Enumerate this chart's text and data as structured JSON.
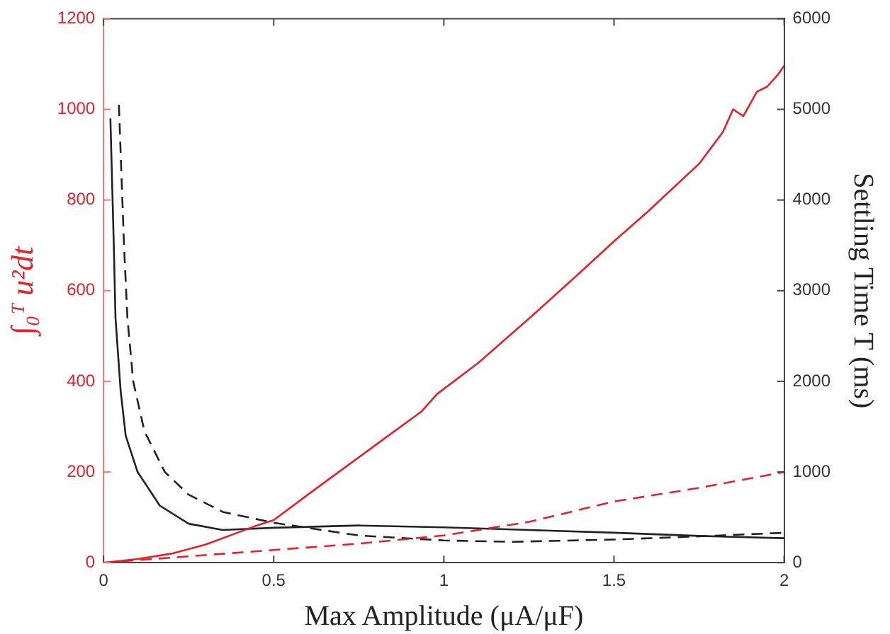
{
  "chart_data": {
    "type": "line",
    "xlabel": "Max Amplitude (μA/μF)",
    "ylabel": "∫₀ᵀ u²dt",
    "y2label": "Settling Time T (ms)",
    "xlim": [
      0,
      2
    ],
    "xticks": [
      0,
      0.5,
      1,
      1.5,
      2
    ],
    "ylim": [
      0,
      1200
    ],
    "yticks": [
      0,
      200,
      400,
      600,
      800,
      1000,
      1200
    ],
    "y2lim": [
      0,
      6000
    ],
    "y2ticks": [
      0,
      1000,
      2000,
      3000,
      4000,
      5000,
      6000
    ],
    "grid": false,
    "legend": false,
    "marker": "none",
    "series": [
      {
        "color": "#e8202a",
        "line_style": "solid",
        "x": [
          0,
          0.1,
          0.2,
          0.3,
          0.4,
          0.45,
          0.5,
          0.6,
          0.7,
          0.8,
          0.935,
          0.98,
          1.1,
          1.26,
          1.4,
          1.5,
          1.6,
          1.75,
          1.82,
          1.85,
          1.88,
          1.92,
          1.95,
          1.98,
          2
        ],
        "values": [
          0,
          8,
          20,
          40,
          68,
          82,
          94,
          150,
          205,
          260,
          334,
          372,
          440,
          545,
          640,
          709,
          775,
          880,
          950,
          1000,
          985,
          1039,
          1050,
          1075,
          1096
        ]
      },
      {
        "color": "#e8202a",
        "line_style": "dashed",
        "x": [
          0,
          0.25,
          0.5,
          0.75,
          1,
          1.25,
          1.5,
          1.75,
          2
        ],
        "values": [
          0,
          14,
          28,
          42,
          60,
          90,
          135,
          165,
          200
        ]
      },
      {
        "color": "#222222",
        "line_style": "solid",
        "axis": "y2",
        "x": [
          0.02,
          0.03,
          0.035,
          0.05,
          0.065,
          0.1,
          0.165,
          0.25,
          0.35,
          0.5,
          0.75,
          1,
          1.25,
          1.5,
          1.75,
          2
        ],
        "values": [
          4900,
          3500,
          2700,
          1900,
          1400,
          1000,
          630,
          430,
          360,
          385,
          410,
          390,
          360,
          330,
          295,
          270
        ]
      },
      {
        "color": "#222222",
        "line_style": "dashed",
        "axis": "y2",
        "x": [
          0.045,
          0.06,
          0.07,
          0.087,
          0.12,
          0.18,
          0.25,
          0.35,
          0.5,
          0.75,
          1,
          1.2,
          1.5,
          1.75,
          2
        ],
        "values": [
          5050,
          3500,
          2700,
          2000,
          1450,
          1000,
          750,
          560,
          440,
          300,
          245,
          230,
          255,
          290,
          330
        ]
      }
    ]
  }
}
